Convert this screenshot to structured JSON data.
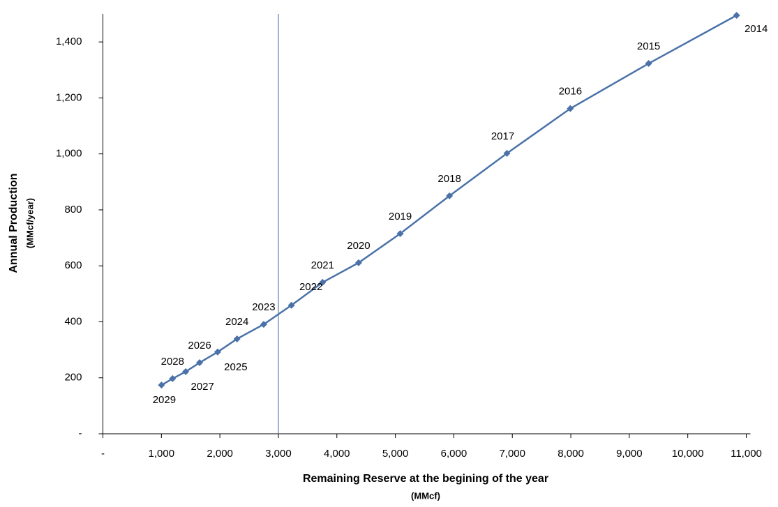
{
  "chart_data": {
    "type": "line",
    "x_label": "Remaining Reserve at the begining of the year",
    "x_label_unit": "(MMcf)",
    "y_label": "Annual Production",
    "y_label_unit": "(MMcf/year)",
    "series": [
      {
        "name": "Annual Production",
        "color": "#4a72a8",
        "x": [
          10835,
          9331,
          7992,
          6908,
          5925,
          5083,
          4372,
          3756,
          3223,
          2749,
          2293,
          1961,
          1653,
          1416,
          1191,
          1001
        ],
        "values": [
          1495,
          1323,
          1162,
          1002,
          850,
          715,
          611,
          541,
          459,
          391,
          339,
          292,
          254,
          222,
          197,
          174
        ],
        "point_labels": [
          "2014",
          "2015",
          "2016",
          "2017",
          "2018",
          "2019",
          "2020",
          "2021",
          "2022",
          "2023",
          "2024",
          "2025",
          "2026",
          "2027",
          "2028",
          "2029"
        ]
      }
    ],
    "xlim": [
      0,
      11000
    ],
    "ylim": [
      0,
      1500
    ],
    "xticks": [
      {
        "value": 0,
        "label": "-"
      },
      {
        "value": 1000,
        "label": "1,000"
      },
      {
        "value": 2000,
        "label": "2,000"
      },
      {
        "value": 3000,
        "label": "3,000"
      },
      {
        "value": 4000,
        "label": "4,000"
      },
      {
        "value": 5000,
        "label": "5,000"
      },
      {
        "value": 6000,
        "label": "6,000"
      },
      {
        "value": 7000,
        "label": "7,000"
      },
      {
        "value": 8000,
        "label": "8,000"
      },
      {
        "value": 9000,
        "label": "9,000"
      },
      {
        "value": 10000,
        "label": "10,000"
      },
      {
        "value": 11000,
        "label": "11,000"
      }
    ],
    "yticks": [
      {
        "value": 0,
        "label": "-"
      },
      200,
      400,
      600,
      800,
      {
        "value": 1000,
        "label": "1,000"
      },
      {
        "value": 1200,
        "label": "1,200"
      },
      {
        "value": 1400,
        "label": "1,400"
      }
    ],
    "vline_x": 3000,
    "vline_color": "#5b7fb0",
    "grid": false
  }
}
